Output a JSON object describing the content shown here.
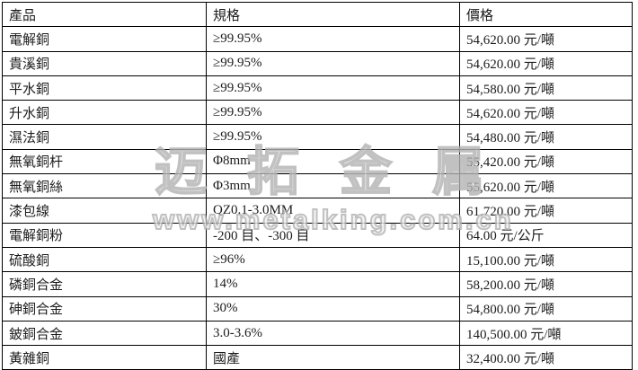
{
  "watermark": {
    "brand": "迈拓金属",
    "url": "www.metalking.com.cn"
  },
  "table": {
    "headers": [
      "產品",
      "規格",
      "價格"
    ],
    "rows": [
      {
        "product": "電解銅",
        "spec": "≥99.95%",
        "price": "54,620.00 元/噸"
      },
      {
        "product": "貴溪銅",
        "spec": "≥99.95%",
        "price": "54,620.00 元/噸"
      },
      {
        "product": "平水銅",
        "spec": "≥99.95%",
        "price": "54,580.00 元/噸"
      },
      {
        "product": "升水銅",
        "spec": "≥99.95%",
        "price": "54,620.00 元/噸"
      },
      {
        "product": "濕法銅",
        "spec": "≥99.95%",
        "price": "54,480.00 元/噸"
      },
      {
        "product": "無氧銅杆",
        "spec": "Φ8mm",
        "price": "55,420.00 元/噸"
      },
      {
        "product": "無氧銅絲",
        "spec": "Φ3mm",
        "price": "55,620.00 元/噸"
      },
      {
        "product": "漆包線",
        "spec": "QZ0.1-3.0MM",
        "price": "61,720.00 元/噸"
      },
      {
        "product": "電解銅粉",
        "spec": "-200 目、-300 目",
        "price": "64.00 元/公斤"
      },
      {
        "product": "硫酸銅",
        "spec": "≥96%",
        "price": "15,100.00 元/噸"
      },
      {
        "product": "磷銅合金",
        "spec": "14%",
        "price": "58,200.00 元/噸"
      },
      {
        "product": "砷銅合金",
        "spec": "30%",
        "price": "54,800.00 元/噸"
      },
      {
        "product": "鈹銅合金",
        "spec": "3.0-3.6%",
        "price": "140,500.00 元/噸"
      },
      {
        "product": "黃雜銅",
        "spec": "國產",
        "price": "32,400.00 元/噸"
      }
    ]
  }
}
